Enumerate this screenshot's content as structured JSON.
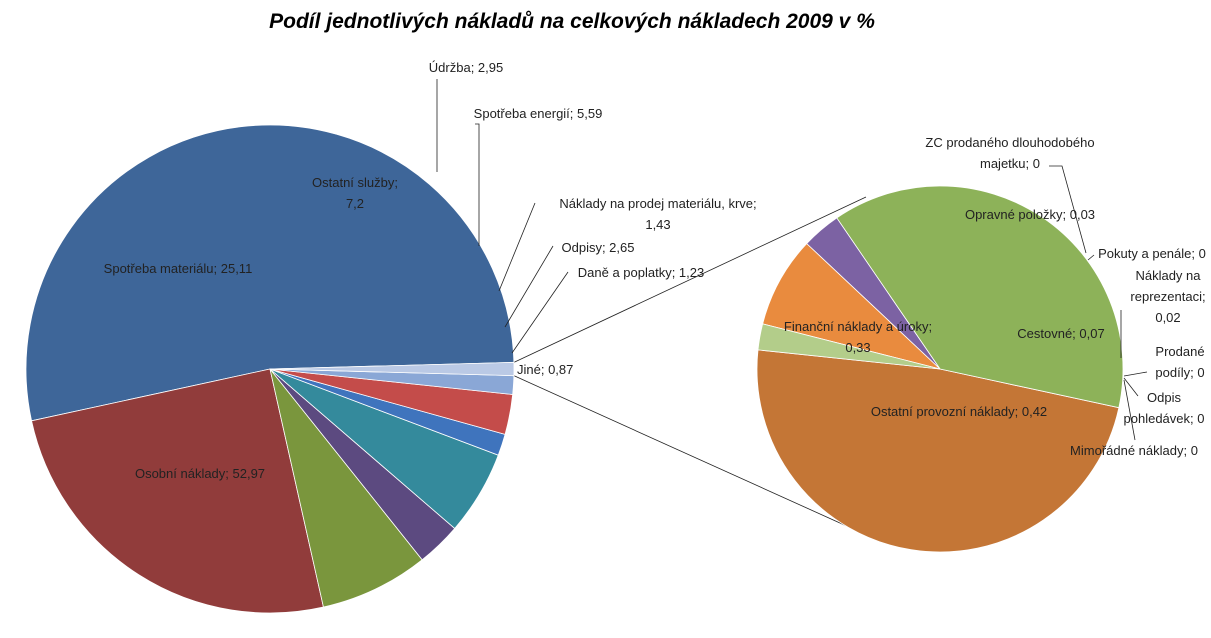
{
  "chart_data": {
    "type": "pie",
    "variant": "pie-of-pie",
    "title": "Podíl jednotlivých nákladů na celkových nákladech 2009 v %",
    "legend": "none",
    "main": {
      "slices": [
        {
          "name": "Osobní náklady",
          "value": 52.97,
          "label": "Osobní náklady; 52,97",
          "color": "#3e6699"
        },
        {
          "name": "Spotřeba materiálu",
          "value": 25.11,
          "label": "Spotřeba materiálu; 25,11",
          "color": "#913c3b"
        },
        {
          "name": "Ostatní služby",
          "value": 7.2,
          "label_lines": [
            "Ostatní služby;",
            "7,2"
          ],
          "color": "#7a963d"
        },
        {
          "name": "Údržba",
          "value": 2.95,
          "label": "Údržba; 2,95",
          "color": "#5c4a80"
        },
        {
          "name": "Spotřeba energií",
          "value": 5.59,
          "label": "Spotřeba energií; 5,59",
          "color": "#348a9c"
        },
        {
          "name": "Náklady na prodej materiálu, krve",
          "value": 1.43,
          "label_lines": [
            "Náklady na prodej materiálu, krve;",
            "1,43"
          ],
          "color": "#3f74bd"
        },
        {
          "name": "Odpisy",
          "value": 2.65,
          "label": "Odpisy; 2,65",
          "color": "#c44c4a"
        },
        {
          "name": "Daně a poplatky",
          "value": 1.23,
          "label": "Daně a poplatky; 1,23",
          "color": "#8aa7d6"
        },
        {
          "name": "Jiné",
          "value": 0.87,
          "label": "Jiné; 0,87",
          "color": "#bac9e5"
        }
      ]
    },
    "secondary": {
      "of": "Jiné",
      "slices": [
        {
          "name": "Ostatní provozní náklady",
          "value": 0.42,
          "label": "Ostatní provozní náklady; 0,42",
          "color": "#c47636"
        },
        {
          "name": "Finanční náklady a úroky",
          "value": 0.33,
          "label_lines": [
            "Finanční náklady a úroky;",
            "0,33"
          ],
          "color": "#8db259"
        },
        {
          "name": "ZC prodaného dlouhodobého majetku",
          "value": 0,
          "label_lines": [
            "ZC prodaného dlouhodobého",
            "majetku; 0"
          ],
          "color": "#4f81bd"
        },
        {
          "name": "Opravné položky",
          "value": 0.03,
          "label": "Opravné položky; 0,03",
          "color": "#7c62a3"
        },
        {
          "name": "Pokuty a penále",
          "value": 0,
          "label": "Pokuty a penále; 0",
          "color": "#c0504d"
        },
        {
          "name": "Cestovné",
          "value": 0.07,
          "label": "Cestovné; 0,07",
          "color": "#e98b3e"
        },
        {
          "name": "Náklady na reprezentaci",
          "value": 0.02,
          "label_lines": [
            "Náklady na",
            "reprezentaci;",
            "0,02"
          ],
          "color": "#b3cd8a"
        },
        {
          "name": "Prodané podíly",
          "value": 0,
          "label_lines": [
            "Prodané",
            "podíly; 0"
          ],
          "color": "#9bbb59"
        },
        {
          "name": "Odpis pohledávek",
          "value": 0,
          "label_lines": [
            "Odpis",
            "pohledávek; 0"
          ],
          "color": "#8064a2"
        },
        {
          "name": "Mimořádné náklady",
          "value": 0,
          "label": "Mimořádné náklady; 0",
          "color": "#4bacc6"
        }
      ]
    }
  }
}
